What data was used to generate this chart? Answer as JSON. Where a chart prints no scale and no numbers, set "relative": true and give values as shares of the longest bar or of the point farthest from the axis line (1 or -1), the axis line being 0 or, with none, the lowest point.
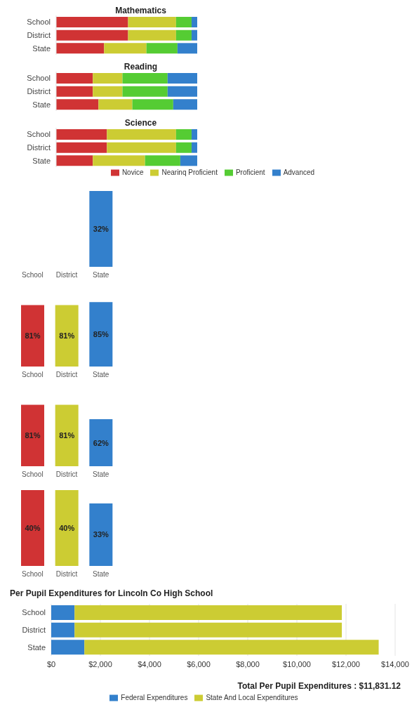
{
  "chart_data": [
    {
      "type": "bar",
      "title": "Mathematics",
      "orientation": "horizontal",
      "stacked": true,
      "relative": true,
      "categories": [
        "School",
        "District",
        "State"
      ],
      "series": [
        {
          "color": "#d03334",
          "values": [
            0.51,
            0.51,
            0.34
          ]
        },
        {
          "color": "#cccc33",
          "values": [
            0.34,
            0.34,
            0.3
          ]
        },
        {
          "color": "#55cc33",
          "values": [
            0.11,
            0.11,
            0.22
          ]
        },
        {
          "color": "#3380cc",
          "values": [
            0.04,
            0.04,
            0.14
          ]
        }
      ]
    },
    {
      "type": "bar",
      "title": "Reading",
      "orientation": "horizontal",
      "stacked": true,
      "relative": true,
      "categories": [
        "School",
        "District",
        "State"
      ],
      "series": [
        {
          "color": "#d03334",
          "values": [
            0.26,
            0.26,
            0.3
          ]
        },
        {
          "color": "#cccc33",
          "values": [
            0.21,
            0.21,
            0.24
          ]
        },
        {
          "color": "#55cc33",
          "values": [
            0.32,
            0.32,
            0.29
          ]
        },
        {
          "color": "#3380cc",
          "values": [
            0.21,
            0.21,
            0.17
          ]
        }
      ]
    },
    {
      "type": "bar",
      "title": "Science",
      "orientation": "horizontal",
      "stacked": true,
      "relative": true,
      "legend": "bottom",
      "categories": [
        "School",
        "District",
        "State"
      ],
      "series": [
        {
          "name": "Novice",
          "color": "#d03334",
          "values": [
            0.36,
            0.36,
            0.26
          ]
        },
        {
          "name": "Nearinq Proficient",
          "color": "#cccc33",
          "values": [
            0.49,
            0.49,
            0.37
          ]
        },
        {
          "name": "Proficient",
          "color": "#55cc33",
          "values": [
            0.11,
            0.11,
            0.25
          ]
        },
        {
          "name": "Advanced",
          "color": "#3380cc",
          "values": [
            0.04,
            0.04,
            0.12
          ]
        }
      ]
    },
    {
      "type": "bar",
      "tick_labels": "x",
      "categories": [
        "School",
        "District",
        "State"
      ],
      "values": [
        null,
        null,
        32
      ],
      "colors": [
        "#d03334",
        "#cccc33",
        "#3380cc"
      ],
      "value_labels": [
        null,
        null,
        "32%"
      ]
    },
    {
      "type": "bar",
      "tick_labels": "x",
      "categories": [
        "School",
        "District",
        "State"
      ],
      "values": [
        81,
        81,
        85
      ],
      "colors": [
        "#d03334",
        "#cccc33",
        "#3380cc"
      ],
      "value_labels": [
        "81%",
        "81%",
        "85%"
      ]
    },
    {
      "type": "bar",
      "tick_labels": "x",
      "categories": [
        "School",
        "District",
        "State"
      ],
      "values": [
        81,
        81,
        62
      ],
      "colors": [
        "#d03334",
        "#cccc33",
        "#3380cc"
      ],
      "value_labels": [
        "81%",
        "81%",
        "62%"
      ]
    },
    {
      "type": "bar",
      "tick_labels": "x",
      "categories": [
        "School",
        "District",
        "State"
      ],
      "values": [
        40,
        40,
        33
      ],
      "colors": [
        "#d03334",
        "#cccc33",
        "#3380cc"
      ],
      "value_labels": [
        "40%",
        "40%",
        "33%"
      ]
    },
    {
      "type": "bar",
      "title": "Per Pupil Expenditures for Lincoln Co High School",
      "orientation": "horizontal",
      "stacked": true,
      "grid": "x",
      "legend": "bottom",
      "categories": [
        "School",
        "District",
        "State"
      ],
      "xlim": [
        0,
        14000
      ],
      "xticks": [
        {
          "value": 0,
          "label": "$0"
        },
        {
          "value": 2000,
          "label": "$2,000"
        },
        {
          "value": 4000,
          "label": "$4,000"
        },
        {
          "value": 6000,
          "label": "$6,000"
        },
        {
          "value": 8000,
          "label": "$8,000"
        },
        {
          "value": 10000,
          "label": "$10,000"
        },
        {
          "value": 12000,
          "label": "$12,000"
        },
        {
          "value": 14000,
          "label": "$14,000"
        }
      ],
      "annotations": [
        "Total Per Pupil Expenditures : $11,831.12"
      ],
      "series": [
        {
          "name": "Federal Expenditures",
          "color": "#3380cc",
          "values": [
            950,
            950,
            1350
          ]
        },
        {
          "name": "State And Local Expenditures",
          "color": "#cccc33",
          "values": [
            10880,
            10880,
            11980
          ]
        }
      ]
    }
  ]
}
